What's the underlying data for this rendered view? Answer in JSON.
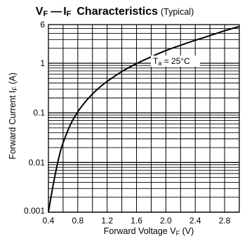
{
  "chart_data": {
    "type": "line",
    "title": "VF—IF  Characteristics",
    "title_parts": {
      "v": "V",
      "v_sub": "F",
      "dash": "—",
      "i": "I",
      "i_sub": "F",
      "rest": "Characteristics"
    },
    "subtitle": "(Typical)",
    "xlabel": "Forward Voltage  VF (V)",
    "xlabel_parts": {
      "main": "Forward Voltage  V",
      "sub": "F",
      "unit": " (V)"
    },
    "ylabel": "Forward Current  IF (A)",
    "ylabel_parts": {
      "main": "Forward Current  I",
      "sub": "F",
      "unit": " (A)"
    },
    "xlim": [
      0.4,
      3.0
    ],
    "ylim": [
      0.001,
      6
    ],
    "y_scale": "log",
    "grid": true,
    "x_ticks": [
      0.4,
      0.8,
      1.2,
      1.6,
      2.0,
      2.4,
      2.8
    ],
    "x_tick_labels": [
      "0.4",
      "0.8",
      "1.2",
      "1.6",
      "2.0",
      "2.4",
      "2.8"
    ],
    "y_ticks": [
      0.001,
      0.01,
      0.1,
      1,
      6
    ],
    "y_tick_labels": [
      "0.001",
      "0.01",
      "0.1",
      "1",
      "6"
    ],
    "annotation": {
      "text": "Ta = 25°C",
      "parts": {
        "t": "T",
        "sub": "a",
        "rest": " = 25°C"
      }
    },
    "series": [
      {
        "x": [
          0.4,
          0.45,
          0.5,
          0.55,
          0.6,
          0.7,
          0.8,
          0.9,
          1.0,
          1.1,
          1.2,
          1.4,
          1.6,
          1.8,
          2.0,
          2.2,
          2.4,
          2.6,
          2.8,
          3.0
        ],
        "y": [
          0.001,
          0.0027,
          0.0065,
          0.014,
          0.025,
          0.058,
          0.105,
          0.165,
          0.24,
          0.33,
          0.43,
          0.68,
          0.98,
          1.35,
          1.8,
          2.3,
          2.9,
          3.6,
          4.5,
          5.5
        ]
      }
    ]
  }
}
